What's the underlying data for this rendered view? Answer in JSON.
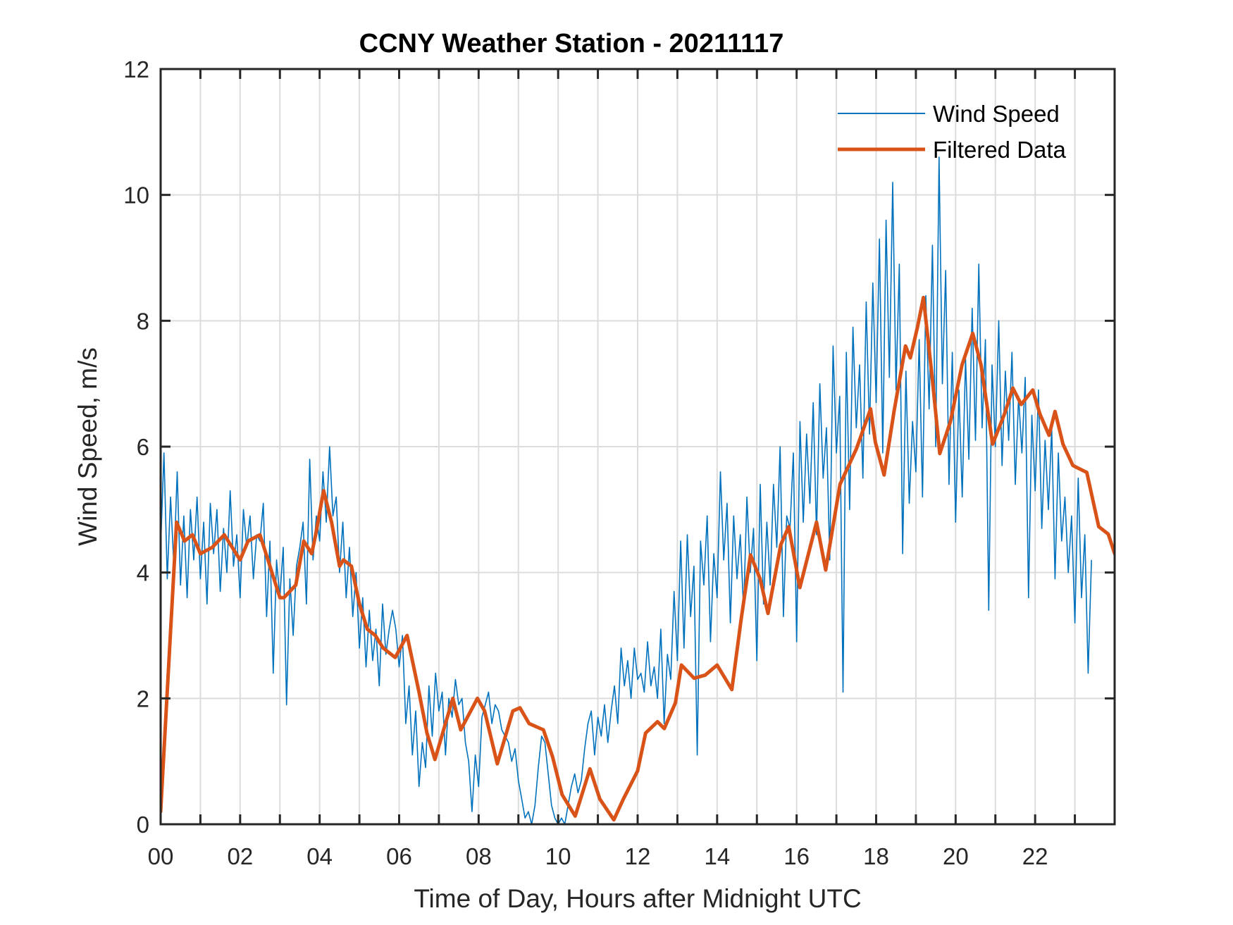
{
  "chart_data": {
    "type": "line",
    "title": "CCNY Weather Station - 20211117",
    "xlabel": "Time of Day, Hours after Midnight UTC",
    "ylabel": "Wind Speed, m/s",
    "xlim": [
      0,
      24
    ],
    "ylim": [
      0,
      12
    ],
    "x_ticks": [
      0,
      2,
      4,
      6,
      8,
      10,
      12,
      14,
      16,
      18,
      20,
      22
    ],
    "x_tick_labels": [
      "00",
      "02",
      "04",
      "06",
      "08",
      "10",
      "12",
      "14",
      "16",
      "18",
      "20",
      "22"
    ],
    "x_minor_grid_step_hours": 1,
    "y_ticks": [
      0,
      2,
      4,
      6,
      8,
      10,
      12
    ],
    "y_tick_labels": [
      "0",
      "2",
      "4",
      "6",
      "8",
      "10",
      "12"
    ],
    "grid": true,
    "legend_position": "top-right",
    "series": [
      {
        "name": "Wind Speed",
        "color": "#0072BD",
        "x_start": 0,
        "x_step": 0.0833333,
        "values": [
          4.4,
          5.9,
          3.9,
          5.2,
          4.1,
          5.6,
          3.8,
          4.9,
          3.6,
          5.0,
          4.2,
          5.2,
          3.9,
          4.8,
          3.5,
          5.1,
          4.3,
          5.0,
          3.7,
          4.7,
          4.0,
          5.3,
          4.1,
          4.6,
          3.6,
          5.0,
          4.4,
          4.9,
          3.9,
          4.6,
          4.5,
          5.1,
          3.3,
          4.5,
          2.4,
          4.2,
          3.6,
          4.4,
          1.9,
          3.9,
          3.0,
          4.1,
          4.4,
          4.8,
          3.5,
          5.8,
          4.2,
          4.9,
          4.5,
          5.6,
          4.8,
          6.0,
          4.9,
          5.2,
          4.0,
          4.8,
          3.6,
          4.4,
          3.3,
          4.0,
          2.8,
          3.6,
          2.5,
          3.4,
          2.6,
          3.1,
          2.2,
          3.5,
          2.7,
          3.1,
          3.4,
          3.1,
          2.5,
          3.0,
          1.6,
          2.2,
          1.1,
          1.8,
          0.6,
          1.3,
          0.9,
          2.2,
          1.4,
          2.4,
          1.8,
          2.1,
          1.1,
          2.0,
          1.7,
          2.3,
          1.9,
          2.0,
          1.3,
          1.0,
          0.2,
          1.1,
          0.6,
          1.7,
          1.9,
          2.1,
          1.6,
          1.9,
          1.8,
          1.5,
          1.4,
          1.3,
          1.0,
          1.2,
          0.7,
          0.4,
          0.1,
          0.2,
          0.0,
          0.3,
          0.9,
          1.4,
          1.3,
          0.8,
          0.3,
          0.1,
          0.0,
          0.1,
          0.0,
          0.3,
          0.6,
          0.8,
          0.5,
          0.7,
          1.2,
          1.6,
          1.8,
          1.1,
          1.7,
          1.4,
          1.9,
          1.3,
          1.8,
          2.2,
          1.6,
          2.8,
          2.2,
          2.6,
          2.0,
          2.8,
          2.3,
          2.4,
          2.1,
          2.9,
          2.2,
          2.5,
          2.0,
          3.1,
          1.6,
          2.7,
          2.3,
          3.7,
          2.6,
          4.5,
          2.8,
          4.6,
          3.3,
          4.1,
          1.1,
          4.5,
          3.8,
          4.9,
          2.9,
          4.3,
          3.6,
          5.6,
          4.2,
          5.1,
          3.2,
          4.9,
          3.9,
          4.6,
          3.4,
          5.2,
          4.0,
          4.7,
          2.6,
          5.4,
          3.5,
          4.8,
          3.8,
          5.4,
          4.4,
          6.0,
          3.3,
          4.9,
          4.7,
          5.9,
          2.9,
          6.4,
          4.8,
          6.2,
          5.1,
          6.7,
          4.6,
          7.0,
          5.5,
          6.3,
          4.2,
          7.6,
          5.9,
          6.8,
          2.1,
          7.5,
          5.0,
          7.9,
          6.3,
          7.3,
          5.5,
          8.3,
          6.2,
          8.6,
          6.7,
          9.3,
          5.9,
          9.6,
          7.1,
          10.2,
          6.9,
          8.9,
          4.3,
          7.2,
          5.1,
          6.4,
          5.6,
          7.7,
          5.2,
          8.4,
          6.6,
          9.2,
          6.0,
          10.6,
          7.0,
          8.8,
          5.4,
          7.5,
          4.8,
          6.9,
          5.2,
          7.4,
          5.8,
          8.2,
          6.1,
          8.9,
          6.3,
          7.7,
          3.4,
          7.3,
          6.0,
          8.0,
          5.7,
          7.2,
          6.1,
          7.5,
          5.4,
          6.8,
          5.9,
          7.1,
          3.6,
          6.5,
          5.3,
          6.9,
          4.7,
          6.1,
          5.0,
          6.3,
          3.9,
          5.9,
          4.5,
          5.2,
          4.0,
          4.9,
          3.2,
          5.5,
          3.6,
          4.6,
          2.4,
          4.2
        ]
      },
      {
        "name": "Filtered Data",
        "color": "#D95319",
        "x": [
          0.0,
          0.4,
          0.6,
          0.8,
          1.0,
          1.3,
          1.6,
          2.0,
          2.2,
          2.5,
          2.8,
          3.0,
          3.1,
          3.4,
          3.6,
          3.8,
          3.9,
          4.1,
          4.3,
          4.5,
          4.6,
          4.8,
          5.0,
          5.2,
          5.4,
          5.6,
          5.9,
          6.2,
          6.5,
          6.7,
          6.9,
          7.35,
          7.55,
          7.97,
          8.15,
          8.47,
          8.86,
          9.04,
          9.27,
          9.63,
          9.86,
          10.1,
          10.43,
          10.8,
          11.05,
          11.4,
          11.64,
          12.0,
          12.2,
          12.5,
          12.67,
          12.95,
          13.1,
          13.42,
          13.7,
          14.0,
          14.37,
          14.6,
          14.84,
          15.08,
          15.28,
          15.6,
          15.8,
          16.08,
          16.5,
          16.73,
          17.09,
          17.5,
          17.86,
          17.98,
          18.2,
          18.45,
          18.74,
          18.86,
          19.04,
          19.19,
          19.4,
          19.6,
          19.87,
          20.16,
          20.43,
          20.64,
          20.93,
          21.23,
          21.44,
          21.65,
          21.94,
          22.12,
          22.35,
          22.5,
          22.7,
          22.95,
          23.3,
          23.6,
          23.84,
          24.0
        ],
        "values": [
          0.2,
          4.8,
          4.5,
          4.6,
          4.3,
          4.4,
          4.6,
          4.2,
          4.5,
          4.6,
          4.0,
          3.6,
          3.6,
          3.8,
          4.5,
          4.3,
          4.6,
          5.3,
          4.8,
          4.1,
          4.2,
          4.1,
          3.5,
          3.1,
          3.0,
          2.8,
          2.65,
          3.0,
          2.1,
          1.45,
          1.03,
          2.0,
          1.5,
          2.0,
          1.8,
          0.96,
          1.8,
          1.85,
          1.6,
          1.5,
          1.07,
          0.47,
          0.13,
          0.88,
          0.4,
          0.07,
          0.4,
          0.85,
          1.45,
          1.63,
          1.52,
          1.93,
          2.53,
          2.32,
          2.37,
          2.53,
          2.14,
          3.24,
          4.28,
          3.9,
          3.35,
          4.44,
          4.73,
          3.76,
          4.8,
          4.04,
          5.4,
          5.96,
          6.6,
          6.07,
          5.55,
          6.56,
          7.6,
          7.41,
          7.9,
          8.37,
          7.16,
          5.89,
          6.4,
          7.3,
          7.8,
          7.3,
          6.04,
          6.52,
          6.93,
          6.67,
          6.9,
          6.52,
          6.18,
          6.56,
          6.04,
          5.7,
          5.59,
          4.73,
          4.61,
          4.3
        ]
      }
    ]
  }
}
